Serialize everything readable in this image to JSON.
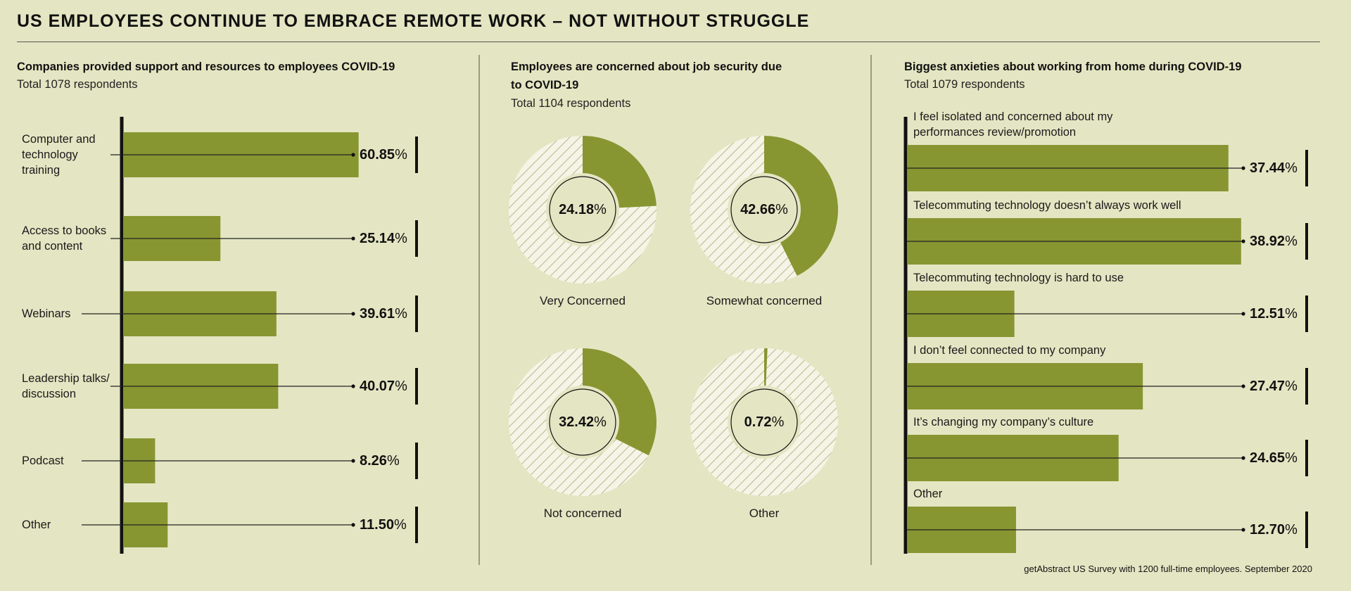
{
  "page_title": "US EMPLOYEES CONTINUE TO EMBRACE REMOTE WORK – NOT WITHOUT STRUGGLE",
  "footer": "getAbstract US Survey with 1200 full-time employees. September 2020",
  "colors": {
    "background": "#e4e6c3",
    "bar": "#879631",
    "axis": "#111111",
    "hatch": "#b9bd93",
    "donut_base": "#f5f4e6"
  },
  "chart_data": [
    {
      "type": "bar",
      "orientation": "horizontal",
      "title": "Companies provided support and resources to employees COVID-19",
      "subtitle": "Total 1078 respondents",
      "categories": [
        "Computer and technology training",
        "Access to books and content",
        "Webinars",
        "Leadership talks/ discussion",
        "Podcast",
        "Other"
      ],
      "category_lines": [
        [
          "Computer and",
          "technology",
          "training"
        ],
        [
          "Access to books",
          "and content"
        ],
        [
          "Webinars"
        ],
        [
          "Leadership talks/",
          "discussion"
        ],
        [
          "Podcast"
        ],
        [
          "Other"
        ]
      ],
      "values": [
        60.85,
        25.14,
        39.61,
        40.07,
        8.26,
        11.5
      ],
      "value_labels": [
        "60.85",
        "25.14",
        "39.61",
        "40.07",
        "8.26",
        "11.50"
      ],
      "unit": "%",
      "xlim": [
        0,
        100
      ]
    },
    {
      "type": "pie",
      "title": "Employees are concerned about job security due to COVID-19",
      "title_lines": [
        "Employees are concerned about job security due",
        "to COVID-19"
      ],
      "subtitle": "Total 1104 respondents",
      "categories": [
        "Very Concerned",
        "Somewhat concerned",
        "Not concerned",
        "Other"
      ],
      "values": [
        24.18,
        42.66,
        32.42,
        0.72
      ],
      "value_labels": [
        "24.18",
        "42.66",
        "32.42",
        "0.72"
      ],
      "unit": "%"
    },
    {
      "type": "bar",
      "orientation": "horizontal",
      "title": "Biggest anxieties about working from home during COVID-19",
      "subtitle": "Total 1079 respondents",
      "categories": [
        "I feel isolated and concerned about my performances review/promotion",
        "Telecommuting technology doesn’t always work well",
        "Telecommuting technology is hard to use",
        "I don’t feel connected to my company",
        "It’s changing my company’s culture",
        "Other"
      ],
      "category_lines": [
        [
          "I feel isolated and concerned about my",
          "performances  review/promotion"
        ],
        [
          "Telecommuting technology doesn’t always work well"
        ],
        [
          "Telecommuting technology is hard to use"
        ],
        [
          "I don’t feel connected to my company"
        ],
        [
          "It’s changing my company’s culture"
        ],
        [
          "Other"
        ]
      ],
      "values": [
        37.44,
        38.92,
        12.51,
        27.47,
        24.65,
        12.7
      ],
      "value_labels": [
        "37.44",
        "38.92",
        "12.51",
        "27.47",
        "24.65",
        "12.70"
      ],
      "unit": "%",
      "xlim": [
        0,
        100
      ]
    }
  ]
}
